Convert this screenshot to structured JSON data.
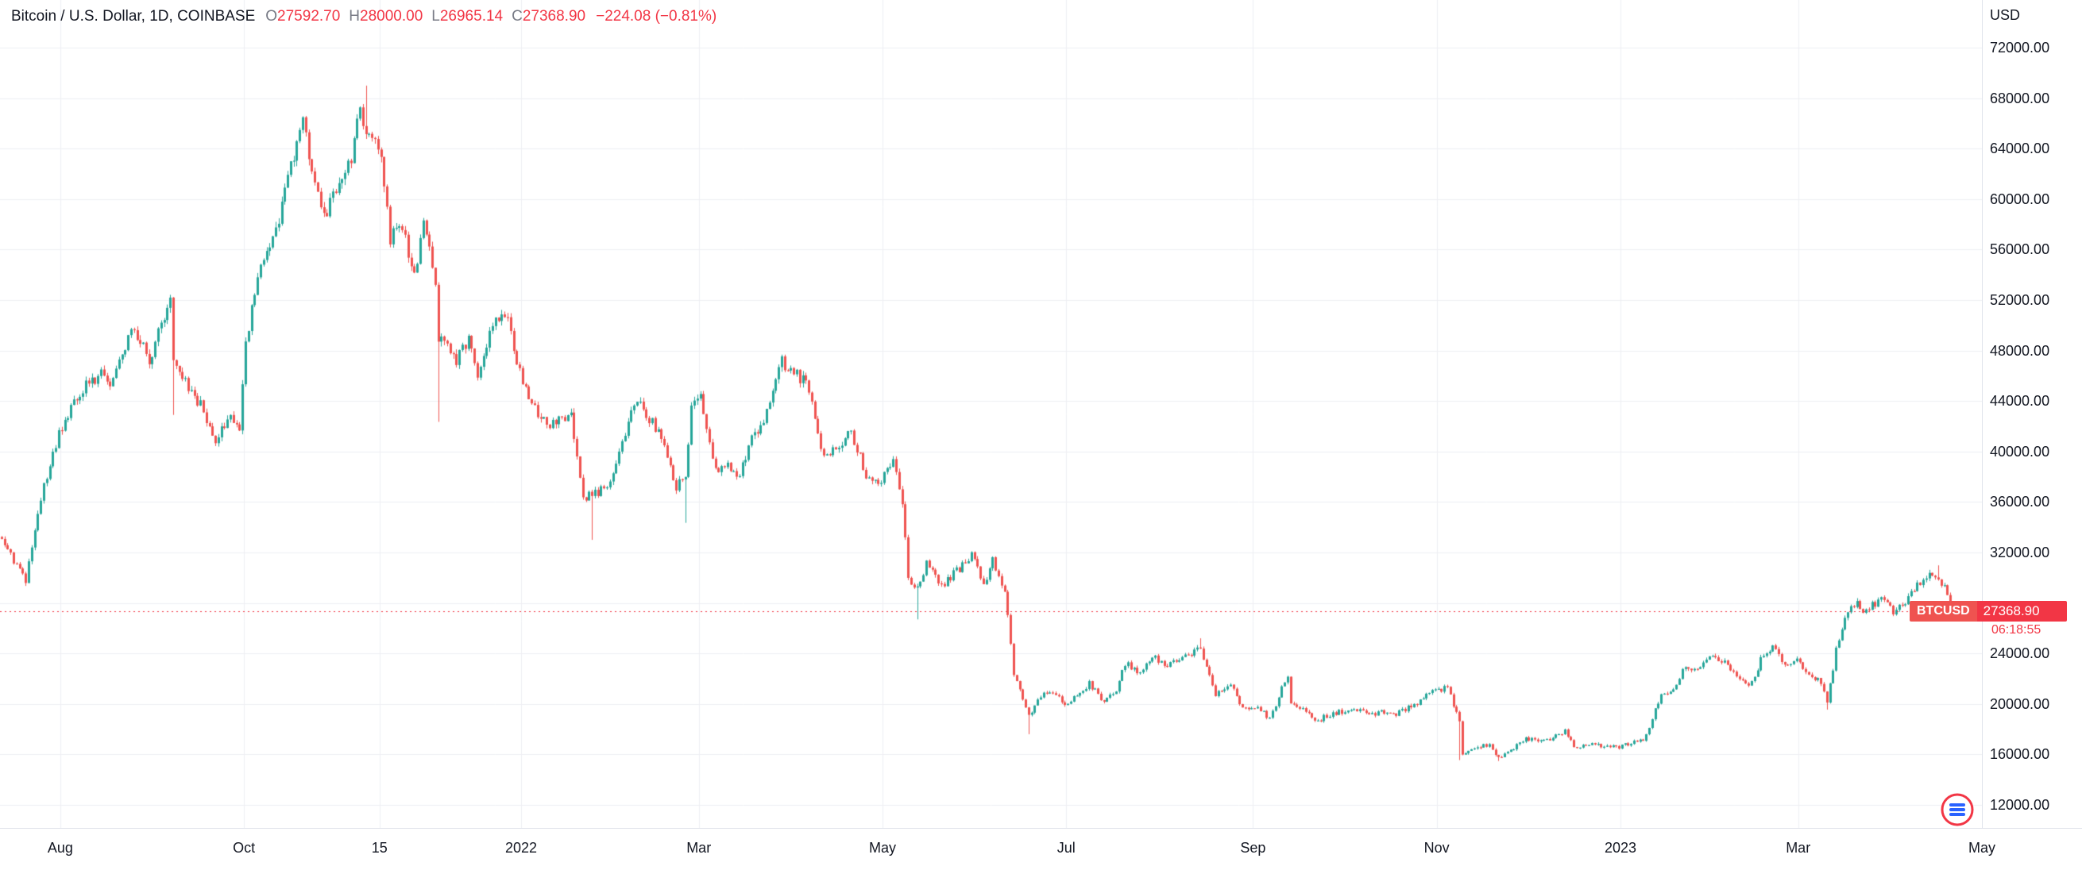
{
  "legend": {
    "title": "Bitcoin / U.S. Dollar, 1D, COINBASE",
    "ohlc": [
      {
        "label": "O",
        "value": "27592.70"
      },
      {
        "label": "H",
        "value": "28000.00"
      },
      {
        "label": "L",
        "value": "26965.14"
      },
      {
        "label": "C",
        "value": "27368.90"
      }
    ],
    "change": "−224.08 (−0.81%)"
  },
  "price_label": {
    "symbol": "BTCUSD",
    "price": "27368.90",
    "countdown": "06:18:55"
  },
  "colors": {
    "up": "#26a69a",
    "down": "#ef5350",
    "accent": "#f23645",
    "grid": "#eef0f3",
    "axis_text": "#131722",
    "muted_text": "#787b86",
    "border": "#e0e3eb"
  },
  "chart_data": {
    "type": "candlestick",
    "title": "Bitcoin / U.S. Dollar",
    "symbol": "BTCUSD",
    "interval": "1D",
    "exchange": "COINBASE",
    "current": {
      "open": 27592.7,
      "high": 28000.0,
      "low": 26965.14,
      "close": 27368.9,
      "change": -224.08,
      "change_pct": -0.81
    },
    "price_line": 27368.9,
    "y_axis": {
      "unit": "USD",
      "min": 12000,
      "max": 72000,
      "step": 4000,
      "ticks": [
        "72000.00",
        "68000.00",
        "64000.00",
        "60000.00",
        "56000.00",
        "52000.00",
        "48000.00",
        "44000.00",
        "40000.00",
        "36000.00",
        "32000.00",
        "24000.00",
        "20000.00",
        "16000.00",
        "12000.00"
      ]
    },
    "x_axis": {
      "span_days": 658,
      "labels": [
        {
          "label": "Aug",
          "day": 20
        },
        {
          "label": "Oct",
          "day": 81
        },
        {
          "label": "15",
          "day": 126
        },
        {
          "label": "2022",
          "day": 173
        },
        {
          "label": "Mar",
          "day": 232
        },
        {
          "label": "May",
          "day": 293
        },
        {
          "label": "Jul",
          "day": 354
        },
        {
          "label": "Sep",
          "day": 416
        },
        {
          "label": "Nov",
          "day": 477
        },
        {
          "label": "2023",
          "day": 538
        },
        {
          "label": "Mar",
          "day": 597
        },
        {
          "label": "May",
          "day": 658
        }
      ]
    },
    "total_days": 650,
    "close_anchors": [
      [
        0,
        33100
      ],
      [
        3,
        31800
      ],
      [
        8,
        29900
      ],
      [
        14,
        37300
      ],
      [
        19,
        41500
      ],
      [
        26,
        44600
      ],
      [
        29,
        45600
      ],
      [
        33,
        46000
      ],
      [
        36,
        44700
      ],
      [
        42,
        49300
      ],
      [
        46,
        48900
      ],
      [
        49,
        47100
      ],
      [
        53,
        50000
      ],
      [
        56,
        52700
      ],
      [
        57,
        46800
      ],
      [
        63,
        44900
      ],
      [
        67,
        43200
      ],
      [
        71,
        40700
      ],
      [
        75,
        42800
      ],
      [
        79,
        41500
      ],
      [
        81,
        48200
      ],
      [
        86,
        55300
      ],
      [
        91,
        57500
      ],
      [
        95,
        61600
      ],
      [
        100,
        66000
      ],
      [
        103,
        62300
      ],
      [
        107,
        58500
      ],
      [
        112,
        61000
      ],
      [
        116,
        63300
      ],
      [
        119,
        67500
      ],
      [
        121,
        64900
      ],
      [
        126,
        63600
      ],
      [
        129,
        56900
      ],
      [
        133,
        58100
      ],
      [
        137,
        53700
      ],
      [
        140,
        57800
      ],
      [
        144,
        53600
      ],
      [
        145,
        49200
      ],
      [
        151,
        47100
      ],
      [
        155,
        48900
      ],
      [
        158,
        46200
      ],
      [
        164,
        50800
      ],
      [
        168,
        50700
      ],
      [
        172,
        46200
      ],
      [
        177,
        43400
      ],
      [
        182,
        41800
      ],
      [
        185,
        42600
      ],
      [
        189,
        43100
      ],
      [
        193,
        36400
      ],
      [
        196,
        36600
      ],
      [
        200,
        37000
      ],
      [
        204,
        38700
      ],
      [
        210,
        44000
      ],
      [
        213,
        43500
      ],
      [
        220,
        40500
      ],
      [
        224,
        37000
      ],
      [
        227,
        38300
      ],
      [
        229,
        43200
      ],
      [
        232,
        44400
      ],
      [
        237,
        38400
      ],
      [
        241,
        39400
      ],
      [
        244,
        37800
      ],
      [
        249,
        41000
      ],
      [
        253,
        42400
      ],
      [
        259,
        47100
      ],
      [
        263,
        46300
      ],
      [
        267,
        45500
      ],
      [
        273,
        39500
      ],
      [
        277,
        40400
      ],
      [
        282,
        41500
      ],
      [
        287,
        38100
      ],
      [
        292,
        37600
      ],
      [
        296,
        39700
      ],
      [
        299,
        36000
      ],
      [
        301,
        30100
      ],
      [
        304,
        29000
      ],
      [
        307,
        31300
      ],
      [
        312,
        29200
      ],
      [
        316,
        30300
      ],
      [
        322,
        31700
      ],
      [
        326,
        29500
      ],
      [
        329,
        31400
      ],
      [
        333,
        29100
      ],
      [
        336,
        22500
      ],
      [
        341,
        19000
      ],
      [
        345,
        20600
      ],
      [
        349,
        21000
      ],
      [
        353,
        19900
      ],
      [
        357,
        20600
      ],
      [
        361,
        21600
      ],
      [
        366,
        20200
      ],
      [
        370,
        21200
      ],
      [
        373,
        23200
      ],
      [
        378,
        22500
      ],
      [
        382,
        23800
      ],
      [
        387,
        23000
      ],
      [
        392,
        23800
      ],
      [
        398,
        24300
      ],
      [
        403,
        20800
      ],
      [
        408,
        21500
      ],
      [
        412,
        19600
      ],
      [
        417,
        19800
      ],
      [
        421,
        18800
      ],
      [
        427,
        22400
      ],
      [
        428,
        20200
      ],
      [
        432,
        19700
      ],
      [
        436,
        18500
      ],
      [
        440,
        19100
      ],
      [
        445,
        19400
      ],
      [
        450,
        19600
      ],
      [
        454,
        19100
      ],
      [
        458,
        19400
      ],
      [
        463,
        19200
      ],
      [
        470,
        20100
      ],
      [
        474,
        20800
      ],
      [
        480,
        21300
      ],
      [
        484,
        18500
      ],
      [
        485,
        15900
      ],
      [
        490,
        16600
      ],
      [
        494,
        16700
      ],
      [
        497,
        15800
      ],
      [
        502,
        16500
      ],
      [
        506,
        17200
      ],
      [
        512,
        17000
      ],
      [
        519,
        17800
      ],
      [
        522,
        16600
      ],
      [
        528,
        16800
      ],
      [
        533,
        16600
      ],
      [
        537,
        16550
      ],
      [
        541,
        16900
      ],
      [
        545,
        17100
      ],
      [
        548,
        18900
      ],
      [
        551,
        20900
      ],
      [
        555,
        21100
      ],
      [
        558,
        22700
      ],
      [
        562,
        22600
      ],
      [
        566,
        23700
      ],
      [
        570,
        23500
      ],
      [
        574,
        22900
      ],
      [
        577,
        21800
      ],
      [
        581,
        21600
      ],
      [
        584,
        23500
      ],
      [
        588,
        24600
      ],
      [
        592,
        23200
      ],
      [
        596,
        23450
      ],
      [
        599,
        22350
      ],
      [
        604,
        21700
      ],
      [
        606,
        20200
      ],
      [
        609,
        24200
      ],
      [
        613,
        27400
      ],
      [
        616,
        28000
      ],
      [
        618,
        27300
      ],
      [
        621,
        27800
      ],
      [
        625,
        28350
      ],
      [
        628,
        27200
      ],
      [
        632,
        28200
      ],
      [
        637,
        29650
      ],
      [
        641,
        30300
      ],
      [
        643,
        30000
      ],
      [
        646,
        28800
      ],
      [
        648,
        27250
      ],
      [
        649,
        27800
      ],
      [
        650,
        27368.9
      ]
    ],
    "wick_events": [
      {
        "day": 8,
        "low": 29350
      },
      {
        "day": 57,
        "low": 42900
      },
      {
        "day": 121,
        "high": 68990
      },
      {
        "day": 145,
        "low": 42350
      },
      {
        "day": 196,
        "low": 33000
      },
      {
        "day": 227,
        "low": 34350
      },
      {
        "day": 304,
        "low": 26700
      },
      {
        "day": 341,
        "low": 17600
      },
      {
        "day": 398,
        "high": 25200
      },
      {
        "day": 484,
        "low": 15550
      },
      {
        "day": 497,
        "low": 15480
      },
      {
        "day": 606,
        "low": 19550
      },
      {
        "day": 643,
        "high": 30980
      }
    ]
  }
}
